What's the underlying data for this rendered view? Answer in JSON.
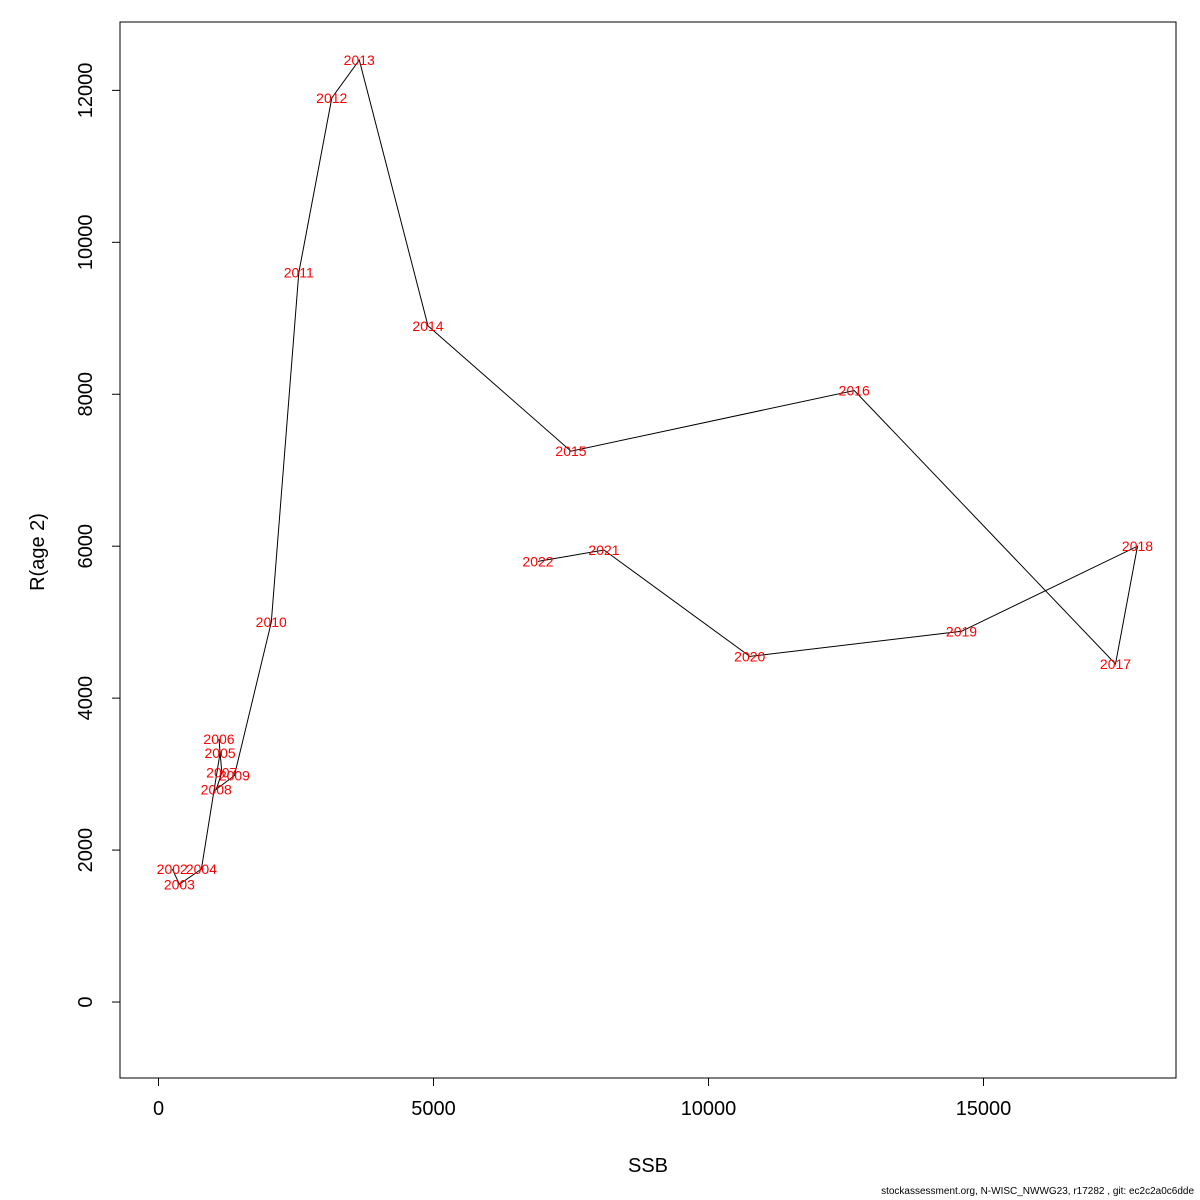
{
  "chart_data": {
    "type": "line",
    "xlabel": "SSB",
    "ylabel": "R(age 2)",
    "xlim": [
      -700,
      18500
    ],
    "ylim": [
      -1000,
      12900
    ],
    "x_ticks": [
      0,
      5000,
      10000,
      15000
    ],
    "y_ticks": [
      0,
      2000,
      4000,
      6000,
      8000,
      10000,
      12000
    ],
    "grid": false,
    "line_color": "#000000",
    "label_color": "#ff0000",
    "points": [
      {
        "year": "2002",
        "x": 250,
        "y": 1750
      },
      {
        "year": "2003",
        "x": 380,
        "y": 1550
      },
      {
        "year": "2004",
        "x": 780,
        "y": 1750
      },
      {
        "year": "2005",
        "x": 1120,
        "y": 3280
      },
      {
        "year": "2006",
        "x": 1100,
        "y": 3460
      },
      {
        "year": "2007",
        "x": 1150,
        "y": 3020
      },
      {
        "year": "2008",
        "x": 1050,
        "y": 2800
      },
      {
        "year": "2009",
        "x": 1380,
        "y": 2980
      },
      {
        "year": "2010",
        "x": 2050,
        "y": 5000
      },
      {
        "year": "2011",
        "x": 2550,
        "y": 9600
      },
      {
        "year": "2012",
        "x": 3150,
        "y": 11900
      },
      {
        "year": "2013",
        "x": 3650,
        "y": 12400
      },
      {
        "year": "2014",
        "x": 4900,
        "y": 8900
      },
      {
        "year": "2015",
        "x": 7500,
        "y": 7250
      },
      {
        "year": "2016",
        "x": 12650,
        "y": 8050
      },
      {
        "year": "2017",
        "x": 17400,
        "y": 4450
      },
      {
        "year": "2018",
        "x": 17800,
        "y": 6000
      },
      {
        "year": "2019",
        "x": 14600,
        "y": 4880
      },
      {
        "year": "2020",
        "x": 10750,
        "y": 4550
      },
      {
        "year": "2021",
        "x": 8100,
        "y": 5950
      },
      {
        "year": "2022",
        "x": 6900,
        "y": 5800
      }
    ]
  },
  "footer": {
    "note": "stockassessment.org, N-WISC_NWWG23, r17282 , git: ec2c2a0c6dde"
  }
}
